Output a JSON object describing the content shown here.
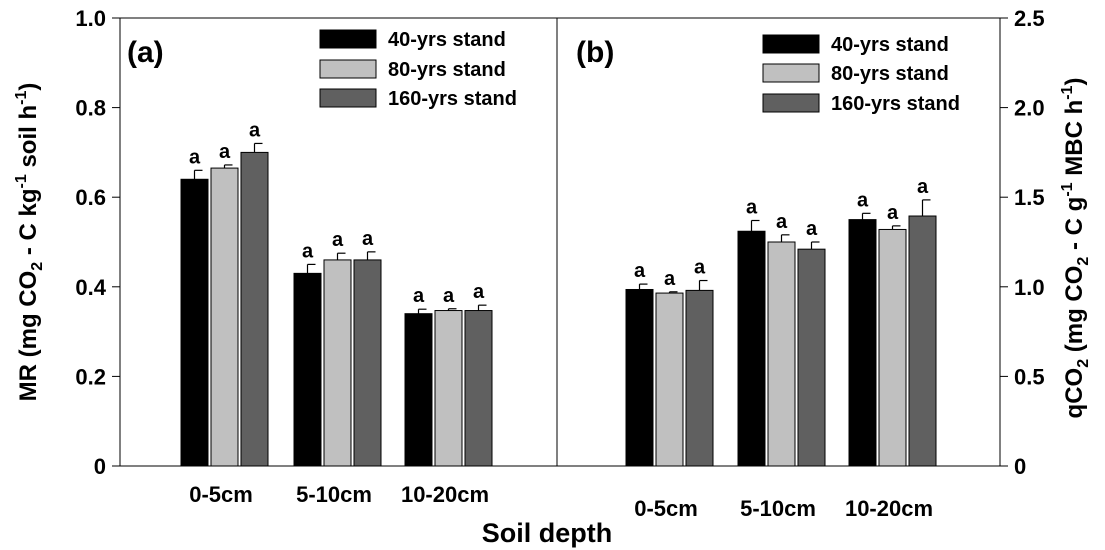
{
  "chart_data": [
    {
      "type": "bar",
      "panel_label": "(a)",
      "categories": [
        "0-5cm",
        "5-10cm",
        "10-20cm"
      ],
      "series": [
        {
          "name": "40-yrs stand",
          "values": [
            0.64,
            0.43,
            0.34
          ],
          "errors": [
            0.02,
            0.02,
            0.01
          ]
        },
        {
          "name": "80-yrs stand",
          "values": [
            0.665,
            0.46,
            0.347
          ],
          "errors": [
            0.007,
            0.015,
            0.004
          ]
        },
        {
          "name": "160-yrs stand",
          "values": [
            0.7,
            0.46,
            0.347
          ],
          "errors": [
            0.02,
            0.018,
            0.012
          ]
        }
      ],
      "significance": [
        [
          "a",
          "a",
          "a"
        ],
        [
          "a",
          "a",
          "a"
        ],
        [
          "a",
          "a",
          "a"
        ]
      ],
      "ylabel": "MR (mg CO2 - C kg-1 soil h-1)",
      "ylabel_parts": {
        "main": "MR (mg CO",
        "sub1": "2",
        "mid": " - C kg",
        "sup1": "-1",
        "mid2": " soil h",
        "sup2": "-1",
        "end": ")"
      },
      "ylim": [
        0,
        1.0
      ],
      "yticks": [
        "0",
        "0.2",
        "0.4",
        "0.6",
        "0.8",
        "1.0"
      ],
      "ytick_values": [
        0,
        0.2,
        0.4,
        0.6,
        0.8,
        1.0
      ],
      "legend": "top-right",
      "grid": false
    },
    {
      "type": "bar",
      "panel_label": "(b)",
      "categories": [
        "0-5cm",
        "5-10cm",
        "10-20cm"
      ],
      "series": [
        {
          "name": "40-yrs stand",
          "values": [
            0.985,
            1.31,
            1.375
          ],
          "errors": [
            0.03,
            0.06,
            0.035
          ]
        },
        {
          "name": "80-yrs stand",
          "values": [
            0.965,
            1.25,
            1.32
          ],
          "errors": [
            0.007,
            0.04,
            0.02
          ]
        },
        {
          "name": "160-yrs stand",
          "values": [
            0.98,
            1.21,
            1.395
          ],
          "errors": [
            0.055,
            0.04,
            0.09
          ]
        }
      ],
      "significance": [
        [
          "a",
          "a",
          "a"
        ],
        [
          "a",
          "a",
          "a"
        ],
        [
          "a",
          "a",
          "a"
        ]
      ],
      "ylabel": "qCO2 (mg CO2 - C g-1 MBC h-1)",
      "ylabel_parts": {
        "main": "qCO",
        "sub1": "2",
        "mid": " (mg CO",
        "sub2": "2",
        "mid2": " - C g",
        "sup1": "-1",
        "end": " MBC h",
        "sup2": "-1",
        "close": ")"
      },
      "ylim": [
        0,
        2.5
      ],
      "yticks": [
        "0",
        "0.5",
        "1.0",
        "1.5",
        "2.0",
        "2.5"
      ],
      "ytick_values": [
        0,
        0.5,
        1.0,
        1.5,
        2.0,
        2.5
      ],
      "legend": "top-right",
      "grid": false
    }
  ],
  "xlabel": "Soil depth",
  "colors": [
    "#000000",
    "#c0c0c0",
    "#606060"
  ]
}
